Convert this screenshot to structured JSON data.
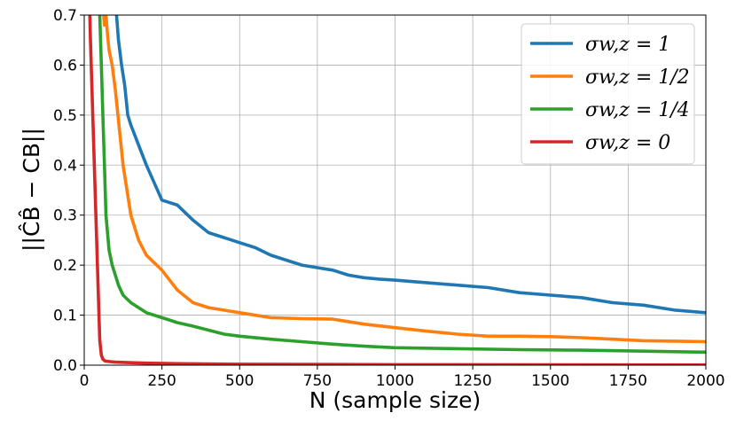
{
  "chart_data": {
    "type": "line",
    "xlabel": "N (sample size)",
    "ylabel": "||ĈB̂ − CB||",
    "xlim": [
      0,
      2000
    ],
    "ylim": [
      0,
      0.7
    ],
    "xticks": [
      0,
      250,
      500,
      750,
      1000,
      1250,
      1500,
      1750,
      2000
    ],
    "yticks": [
      0.0,
      0.1,
      0.2,
      0.3,
      0.4,
      0.5,
      0.6,
      0.7
    ],
    "xtick_labels": [
      "0",
      "250",
      "500",
      "750",
      "1000",
      "1250",
      "1500",
      "1750",
      "2000"
    ],
    "ytick_labels": [
      "0.0",
      "0.1",
      "0.2",
      "0.3",
      "0.4",
      "0.5",
      "0.6",
      "0.7"
    ],
    "grid": true,
    "legend_position": "top-right",
    "series": [
      {
        "name": "σw,z = 1",
        "color": "#1f77b4",
        "x": [
          90,
          100,
          110,
          120,
          130,
          140,
          150,
          175,
          200,
          250,
          300,
          350,
          400,
          450,
          500,
          550,
          600,
          650,
          700,
          750,
          800,
          850,
          900,
          950,
          1000,
          1100,
          1200,
          1300,
          1400,
          1500,
          1600,
          1700,
          1800,
          1900,
          2000
        ],
        "y": [
          0.85,
          0.73,
          0.65,
          0.6,
          0.56,
          0.5,
          0.48,
          0.44,
          0.4,
          0.33,
          0.32,
          0.29,
          0.265,
          0.255,
          0.245,
          0.235,
          0.22,
          0.21,
          0.2,
          0.195,
          0.19,
          0.18,
          0.175,
          0.172,
          0.17,
          0.165,
          0.16,
          0.155,
          0.145,
          0.14,
          0.135,
          0.125,
          0.12,
          0.11,
          0.105
        ]
      },
      {
        "name": "σw,z = 1/2",
        "color": "#ff7f0e",
        "x": [
          55,
          60,
          65,
          70,
          75,
          80,
          90,
          100,
          125,
          150,
          175,
          200,
          250,
          300,
          350,
          400,
          500,
          600,
          700,
          800,
          900,
          1000,
          1100,
          1200,
          1300,
          1400,
          1500,
          1600,
          1700,
          1800,
          1900,
          2000
        ],
        "y": [
          0.8,
          0.72,
          0.68,
          0.7,
          0.66,
          0.63,
          0.6,
          0.55,
          0.4,
          0.3,
          0.25,
          0.22,
          0.19,
          0.15,
          0.125,
          0.115,
          0.105,
          0.095,
          0.093,
          0.092,
          0.082,
          0.075,
          0.068,
          0.062,
          0.058,
          0.058,
          0.057,
          0.055,
          0.052,
          0.049,
          0.048,
          0.047
        ]
      },
      {
        "name": "σw,z = 1/4",
        "color": "#2ca02c",
        "x": [
          45,
          50,
          55,
          60,
          65,
          70,
          80,
          90,
          100,
          110,
          125,
          150,
          175,
          200,
          250,
          300,
          350,
          400,
          450,
          500,
          600,
          700,
          800,
          900,
          1000,
          1200,
          1400,
          1600,
          1800,
          2000
        ],
        "y": [
          0.8,
          0.7,
          0.6,
          0.5,
          0.4,
          0.3,
          0.23,
          0.2,
          0.18,
          0.16,
          0.14,
          0.125,
          0.115,
          0.105,
          0.095,
          0.085,
          0.078,
          0.07,
          0.062,
          0.058,
          0.052,
          0.047,
          0.042,
          0.038,
          0.035,
          0.033,
          0.031,
          0.03,
          0.028,
          0.026
        ]
      },
      {
        "name": "σw,z = 0",
        "color": "#d62728",
        "x": [
          10,
          20,
          30,
          40,
          50,
          55,
          60,
          65,
          70,
          100,
          150,
          200,
          300,
          500,
          1000,
          2000
        ],
        "y": [
          0.9,
          0.65,
          0.45,
          0.25,
          0.05,
          0.02,
          0.012,
          0.009,
          0.008,
          0.006,
          0.005,
          0.004,
          0.003,
          0.002,
          0.001,
          0.0005
        ]
      }
    ]
  }
}
